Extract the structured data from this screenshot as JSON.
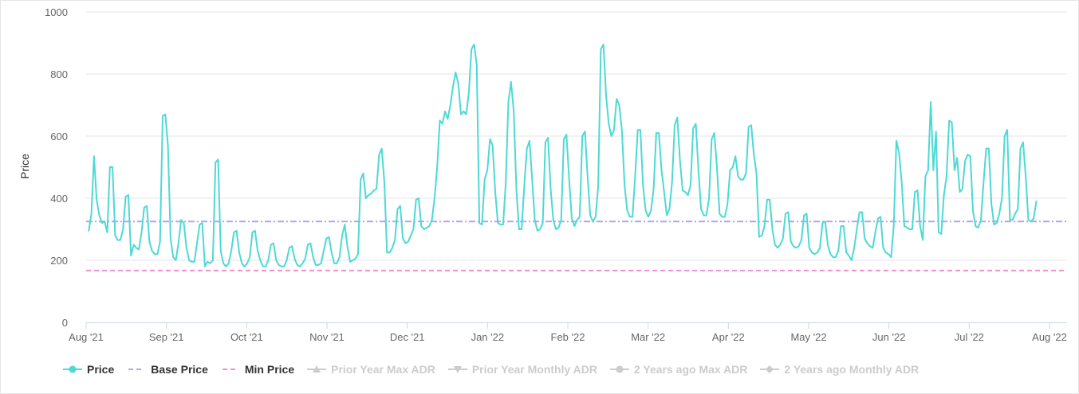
{
  "chart_data": {
    "type": "line",
    "ylabel": "Price",
    "ylim": [
      0,
      1000
    ],
    "yticks": [
      0,
      200,
      400,
      600,
      800,
      1000
    ],
    "xticks": [
      "Aug '21",
      "Sep '21",
      "Oct '21",
      "Nov '21",
      "Dec '21",
      "Jan '22",
      "Feb '22",
      "Mar '22",
      "Apr '22",
      "May '22",
      "Jun '22",
      "Jul '22",
      "Aug '22"
    ],
    "x_start": "2021-08-01",
    "x_end": "2022-08-01",
    "series": [
      {
        "name": "Price",
        "color": "#4dd9d5",
        "start": "2021-08-02",
        "values": [
          295,
          350,
          535,
          395,
          345,
          320,
          325,
          290,
          500,
          500,
          280,
          265,
          265,
          300,
          405,
          410,
          215,
          250,
          240,
          235,
          290,
          370,
          375,
          260,
          230,
          220,
          220,
          260,
          665,
          670,
          570,
          270,
          210,
          200,
          255,
          330,
          320,
          240,
          200,
          195,
          195,
          255,
          315,
          320,
          180,
          195,
          190,
          200,
          515,
          525,
          230,
          190,
          180,
          190,
          230,
          290,
          295,
          225,
          190,
          180,
          190,
          210,
          290,
          295,
          230,
          200,
          180,
          180,
          200,
          250,
          255,
          200,
          185,
          180,
          180,
          200,
          240,
          245,
          205,
          185,
          180,
          190,
          205,
          250,
          255,
          210,
          185,
          185,
          190,
          230,
          270,
          275,
          225,
          190,
          190,
          210,
          280,
          315,
          245,
          195,
          200,
          205,
          220,
          460,
          480,
          400,
          410,
          415,
          425,
          430,
          540,
          560,
          450,
          225,
          225,
          240,
          265,
          365,
          375,
          270,
          255,
          260,
          280,
          300,
          395,
          400,
          310,
          300,
          305,
          310,
          330,
          400,
          500,
          650,
          640,
          680,
          655,
          700,
          760,
          805,
          770,
          670,
          680,
          670,
          740,
          880,
          895,
          830,
          320,
          315,
          460,
          490,
          590,
          570,
          420,
          320,
          315,
          315,
          450,
          710,
          775,
          680,
          430,
          300,
          300,
          440,
          560,
          585,
          460,
          330,
          295,
          300,
          320,
          580,
          595,
          430,
          330,
          300,
          305,
          330,
          590,
          605,
          460,
          335,
          310,
          330,
          340,
          600,
          615,
          470,
          345,
          325,
          340,
          440,
          880,
          895,
          730,
          640,
          600,
          620,
          720,
          700,
          620,
          440,
          360,
          340,
          340,
          470,
          620,
          620,
          440,
          360,
          340,
          360,
          430,
          610,
          610,
          490,
          420,
          345,
          365,
          450,
          635,
          660,
          520,
          425,
          420,
          410,
          440,
          625,
          640,
          490,
          365,
          345,
          345,
          400,
          590,
          610,
          500,
          350,
          340,
          340,
          380,
          490,
          500,
          535,
          470,
          460,
          460,
          480,
          630,
          635,
          540,
          480,
          275,
          280,
          310,
          395,
          395,
          300,
          250,
          240,
          250,
          270,
          350,
          355,
          260,
          245,
          240,
          245,
          265,
          345,
          350,
          240,
          225,
          220,
          225,
          240,
          320,
          325,
          250,
          220,
          210,
          210,
          230,
          310,
          310,
          225,
          215,
          200,
          240,
          300,
          355,
          355,
          270,
          255,
          245,
          240,
          290,
          335,
          340,
          240,
          225,
          220,
          210,
          310,
          585,
          545,
          450,
          310,
          305,
          300,
          300,
          420,
          425,
          310,
          265,
          470,
          490,
          710,
          490,
          615,
          290,
          285,
          410,
          470,
          650,
          645,
          490,
          530,
          420,
          430,
          520,
          540,
          535,
          360,
          310,
          305,
          330,
          450,
          560,
          560,
          380,
          315,
          320,
          350,
          400,
          600,
          620,
          330,
          330,
          350,
          365,
          560,
          580,
          470,
          330,
          325,
          335,
          390
        ]
      }
    ],
    "reference_lines": [
      {
        "name": "Base Price",
        "value": 325,
        "color": "#b3a7e6",
        "dash": "dash-dot"
      },
      {
        "name": "Min Price",
        "value": 167,
        "color": "#f28ed4",
        "dash": "dash"
      }
    ],
    "legend": {
      "placement": "bottom-left",
      "items": [
        {
          "label": "Price",
          "color": "#4dd9d5",
          "symbol": "circle-line",
          "active": true
        },
        {
          "label": "Base Price",
          "color": "#b3a7e6",
          "symbol": "dash",
          "active": true
        },
        {
          "label": "Min Price",
          "color": "#f28ed4",
          "symbol": "dash",
          "active": true
        },
        {
          "label": "Prior Year Max ADR",
          "color": "#cccccc",
          "symbol": "triangle-up",
          "active": false
        },
        {
          "label": "Prior Year Monthly ADR",
          "color": "#cccccc",
          "symbol": "triangle-down",
          "active": false
        },
        {
          "label": "2 Years ago Max ADR",
          "color": "#cccccc",
          "symbol": "circle",
          "active": false
        },
        {
          "label": "2 Years ago Monthly ADR",
          "color": "#cccccc",
          "symbol": "diamond",
          "active": false
        }
      ]
    },
    "grid": true
  }
}
